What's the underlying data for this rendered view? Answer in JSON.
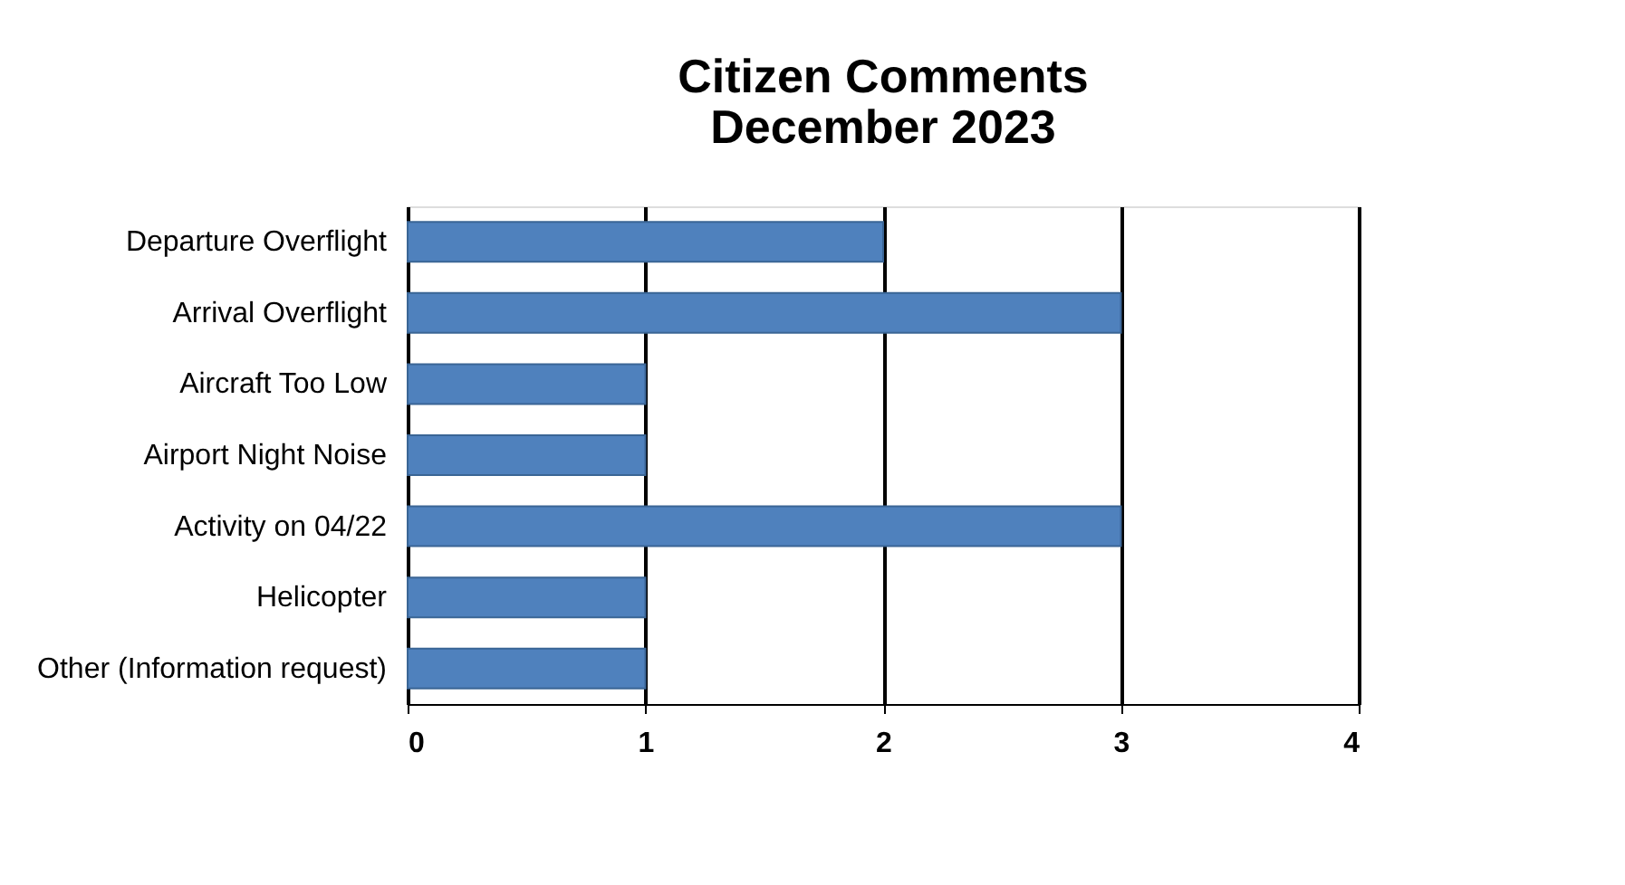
{
  "chart_data": {
    "type": "bar",
    "orientation": "horizontal",
    "title": "Citizen Comments\nDecember 2023",
    "categories": [
      "Departure Overflight",
      "Arrival Overflight",
      "Aircraft Too Low",
      "Airport Night Noise",
      "Activity on 04/22",
      "Helicopter",
      "Other (Information request)"
    ],
    "values": [
      2,
      3,
      1,
      1,
      3,
      1,
      1
    ],
    "color": "#4f81bd",
    "xlim": [
      0,
      4
    ],
    "xticks": [
      0,
      1,
      2,
      3,
      4
    ],
    "grid": "x"
  }
}
